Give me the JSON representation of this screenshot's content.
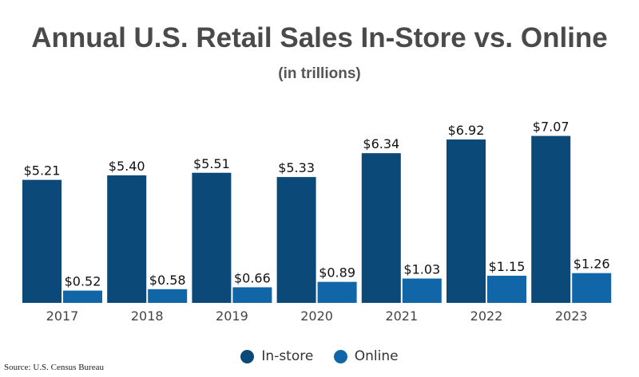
{
  "chart_data": {
    "type": "bar",
    "title": "Annual U.S. Retail Sales In-Store vs. Online",
    "subtitle": "(in trillions)",
    "categories": [
      "2017",
      "2018",
      "2019",
      "2020",
      "2021",
      "2022",
      "2023"
    ],
    "series": [
      {
        "name": "In-store",
        "color": "#0b4a78",
        "values": [
          5.21,
          5.4,
          5.51,
          5.33,
          6.34,
          6.92,
          7.07
        ],
        "labels": [
          "$5.21",
          "$5.40",
          "$5.51",
          "$5.33",
          "$6.34",
          "$6.92",
          "$7.07"
        ]
      },
      {
        "name": "Online",
        "color": "#1166a8",
        "values": [
          0.52,
          0.58,
          0.66,
          0.89,
          1.03,
          1.15,
          1.26
        ],
        "labels": [
          "$0.52",
          "$0.58",
          "$0.66",
          "$0.89",
          "$1.03",
          "$1.15",
          "$1.26"
        ]
      }
    ],
    "xlabel": "",
    "ylabel": "",
    "ylim": [
      0,
      8
    ],
    "grid": false,
    "legend_position": "bottom-center"
  },
  "legend": {
    "instore_label": "In-store",
    "online_label": "Online",
    "instore_color": "#0b4a78",
    "online_color": "#1166a8"
  },
  "source": "Source: U.S. Census Bureau"
}
